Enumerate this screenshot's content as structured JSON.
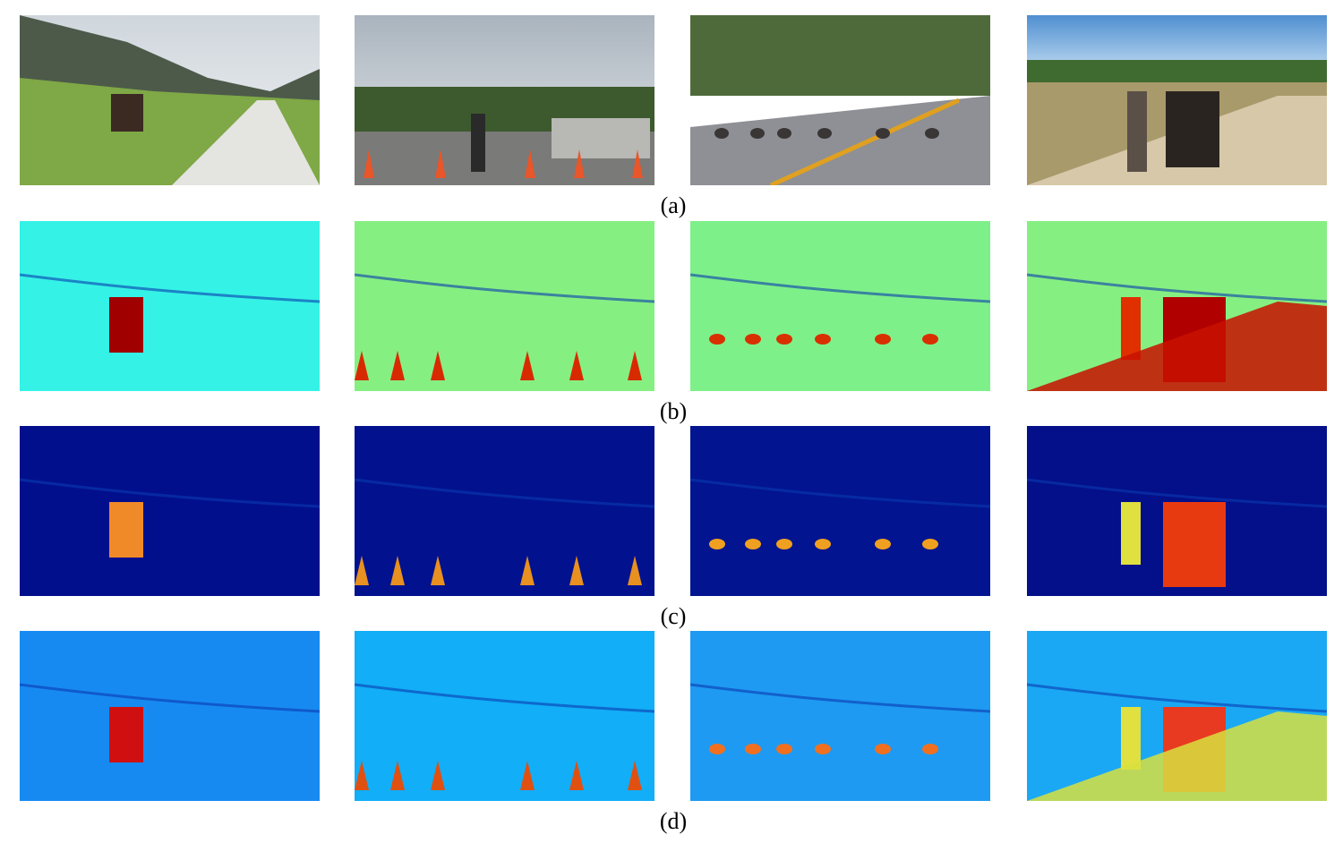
{
  "figure": {
    "row_labels": [
      "(a)",
      "(b)",
      "(c)",
      "(d)"
    ]
  }
}
